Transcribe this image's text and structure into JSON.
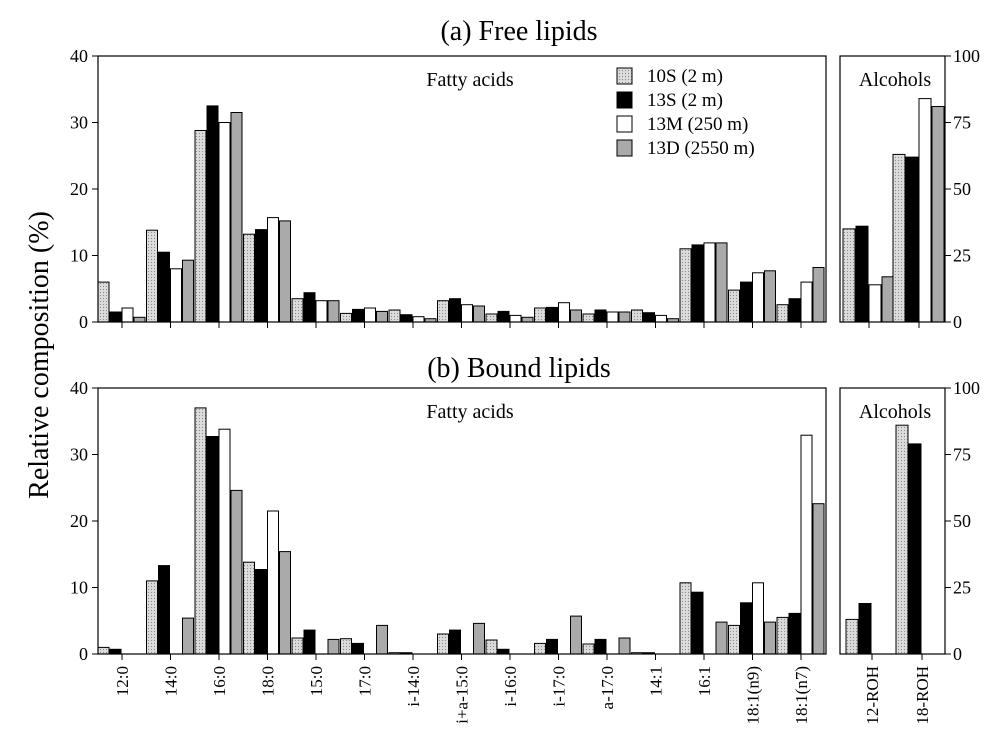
{
  "figure": {
    "ylabel": "Relative composition (%)",
    "legend": [
      "10S (2 m)",
      "13S (2 m)",
      "13M (250 m)",
      "13D (2550 m)"
    ],
    "colors": {
      "10S (2 m)": "#d8d8d8",
      "13S (2 m)": "#000000",
      "13M (250 m)": "#ffffff",
      "13D (2550 m)": "#aaaaaa"
    }
  },
  "chart_data": [
    {
      "type": "bar",
      "title": "(a) Free lipids",
      "panel_label": "Fatty acids",
      "categories": [
        "12:0",
        "14:0",
        "16:0",
        "18:0",
        "15:0",
        "17:0",
        "i-14:0",
        "i+a-15:0",
        "i-16:0",
        "i-17:0",
        "a-17:0",
        "14:1",
        "16:1",
        "18:1(n9)",
        "18:1(n7)"
      ],
      "ylim": [
        0,
        40
      ],
      "yticks": [
        0,
        10,
        20,
        30,
        40
      ],
      "legend_placement": "top-right",
      "series": [
        {
          "name": "10S (2 m)",
          "values": [
            6.0,
            13.8,
            28.8,
            13.2,
            3.5,
            1.3,
            1.8,
            3.2,
            1.2,
            2.1,
            1.2,
            1.8,
            11.0,
            4.8,
            2.6
          ]
        },
        {
          "name": "13S (2 m)",
          "values": [
            1.5,
            10.5,
            32.5,
            13.9,
            4.4,
            1.9,
            1.1,
            3.5,
            1.6,
            2.2,
            1.8,
            1.4,
            11.6,
            6.0,
            3.5
          ]
        },
        {
          "name": "13M (250 m)",
          "values": [
            2.1,
            8.0,
            30.0,
            15.7,
            3.2,
            2.1,
            0.8,
            2.6,
            1.0,
            2.9,
            1.5,
            1.0,
            11.9,
            7.4,
            6.0
          ]
        },
        {
          "name": "13D (2550 m)",
          "values": [
            0.7,
            9.3,
            31.5,
            15.2,
            3.2,
            1.6,
            0.5,
            2.4,
            0.7,
            1.8,
            1.5,
            0.5,
            11.9,
            7.7,
            8.2
          ]
        }
      ]
    },
    {
      "type": "bar",
      "title": "",
      "panel_label": "Alcohols",
      "categories": [
        "12-ROH",
        "18-ROH"
      ],
      "ylim": [
        0,
        100
      ],
      "yticks": [
        0,
        25,
        50,
        75,
        100
      ],
      "series": [
        {
          "name": "10S (2 m)",
          "values": [
            35,
            63
          ]
        },
        {
          "name": "13S (2 m)",
          "values": [
            36,
            62
          ]
        },
        {
          "name": "13M (250 m)",
          "values": [
            14,
            84
          ]
        },
        {
          "name": "13D (2550 m)",
          "values": [
            17,
            81
          ]
        }
      ]
    },
    {
      "type": "bar",
      "title": "(b) Bound lipids",
      "panel_label": "Fatty acids",
      "categories": [
        "12:0",
        "14:0",
        "16:0",
        "18:0",
        "15:0",
        "17:0",
        "i-14:0",
        "i+a-15:0",
        "i-16:0",
        "i-17:0",
        "a-17:0",
        "14:1",
        "16:1",
        "18:1(n9)",
        "18:1(n7)"
      ],
      "ylim": [
        0,
        40
      ],
      "yticks": [
        0,
        10,
        20,
        30,
        40
      ],
      "series": [
        {
          "name": "10S (2 m)",
          "values": [
            1.0,
            11.0,
            37.0,
            13.8,
            2.4,
            2.3,
            0.2,
            3.0,
            2.1,
            1.6,
            1.5,
            0.2,
            10.7,
            4.3,
            5.5
          ]
        },
        {
          "name": "13S (2 m)",
          "values": [
            0.7,
            13.3,
            32.7,
            12.7,
            3.6,
            1.6,
            0.2,
            3.6,
            0.7,
            2.2,
            2.2,
            0.2,
            9.3,
            7.7,
            6.1
          ]
        },
        {
          "name": "13M (250 m)",
          "values": [
            0.0,
            0.0,
            33.8,
            21.5,
            0.0,
            0.0,
            0.0,
            0.0,
            0.0,
            0.0,
            0.0,
            0.0,
            0.0,
            10.7,
            32.9
          ]
        },
        {
          "name": "13D (2550 m)",
          "values": [
            0.0,
            5.4,
            24.6,
            15.4,
            2.2,
            4.3,
            0.0,
            4.6,
            0.0,
            5.7,
            2.4,
            0.0,
            4.8,
            4.8,
            22.6
          ]
        }
      ]
    },
    {
      "type": "bar",
      "title": "",
      "panel_label": "Alcohols",
      "categories": [
        "12-ROH",
        "18-ROH"
      ],
      "ylim": [
        0,
        100
      ],
      "yticks": [
        0,
        25,
        50,
        75,
        100
      ],
      "series": [
        {
          "name": "10S (2 m)",
          "values": [
            13,
            86
          ]
        },
        {
          "name": "13S (2 m)",
          "values": [
            19,
            79
          ]
        },
        {
          "name": "13M (250 m)",
          "values": [
            0,
            0
          ]
        },
        {
          "name": "13D (2550 m)",
          "values": [
            0,
            0
          ]
        }
      ]
    }
  ]
}
